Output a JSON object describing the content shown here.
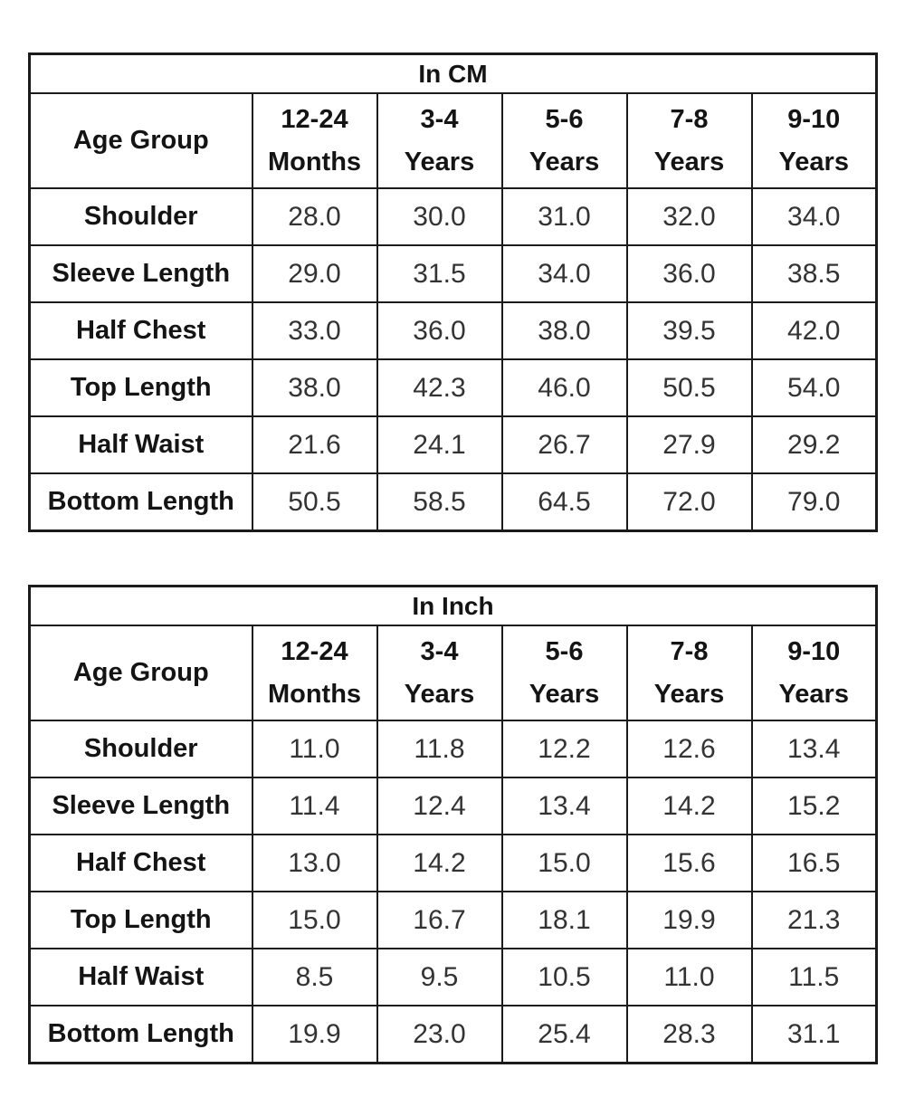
{
  "page": {
    "background": "#ffffff",
    "border_color": "#1b1b1b",
    "label_color": "#141414",
    "value_color": "#333333"
  },
  "tables": [
    {
      "title": "In CM",
      "corner_header": "Age Group",
      "column_headers": [
        "12-24\nMonths",
        "3-4\nYears",
        "5-6\nYears",
        "7-8\nYears",
        "9-10\nYears"
      ],
      "row_headers": [
        "Shoulder",
        "Sleeve Length",
        "Half Chest",
        "Top Length",
        "Half Waist",
        "Bottom Length"
      ],
      "rows": [
        [
          "28.0",
          "30.0",
          "31.0",
          "32.0",
          "34.0"
        ],
        [
          "29.0",
          "31.5",
          "34.0",
          "36.0",
          "38.5"
        ],
        [
          "33.0",
          "36.0",
          "38.0",
          "39.5",
          "42.0"
        ],
        [
          "38.0",
          "42.3",
          "46.0",
          "50.5",
          "54.0"
        ],
        [
          "21.6",
          "24.1",
          "26.7",
          "27.9",
          "29.2"
        ],
        [
          "50.5",
          "58.5",
          "64.5",
          "72.0",
          "79.0"
        ]
      ]
    },
    {
      "title": "In Inch",
      "corner_header": "Age Group",
      "column_headers": [
        "12-24\nMonths",
        "3-4\nYears",
        "5-6\nYears",
        "7-8\nYears",
        "9-10\nYears"
      ],
      "row_headers": [
        "Shoulder",
        "Sleeve Length",
        "Half Chest",
        "Top Length",
        "Half Waist",
        "Bottom Length"
      ],
      "rows": [
        [
          "11.0",
          "11.8",
          "12.2",
          "12.6",
          "13.4"
        ],
        [
          "11.4",
          "12.4",
          "13.4",
          "14.2",
          "15.2"
        ],
        [
          "13.0",
          "14.2",
          "15.0",
          "15.6",
          "16.5"
        ],
        [
          "15.0",
          "16.7",
          "18.1",
          "19.9",
          "21.3"
        ],
        [
          "8.5",
          "9.5",
          "10.5",
          "11.0",
          "11.5"
        ],
        [
          "19.9",
          "23.0",
          "25.4",
          "28.3",
          "31.1"
        ]
      ]
    }
  ],
  "chart_data": [
    {
      "type": "table",
      "title": "In CM",
      "corner_header": "Age Group",
      "categories": [
        "12-24 Months",
        "3-4 Years",
        "5-6 Years",
        "7-8 Years",
        "9-10 Years"
      ],
      "series": [
        {
          "name": "Shoulder",
          "values": [
            28.0,
            30.0,
            31.0,
            32.0,
            34.0
          ]
        },
        {
          "name": "Sleeve Length",
          "values": [
            29.0,
            31.5,
            34.0,
            36.0,
            38.5
          ]
        },
        {
          "name": "Half Chest",
          "values": [
            33.0,
            36.0,
            38.0,
            39.5,
            42.0
          ]
        },
        {
          "name": "Top Length",
          "values": [
            38.0,
            42.3,
            46.0,
            50.5,
            54.0
          ]
        },
        {
          "name": "Half Waist",
          "values": [
            21.6,
            24.1,
            26.7,
            27.9,
            29.2
          ]
        },
        {
          "name": "Bottom Length",
          "values": [
            50.5,
            58.5,
            64.5,
            72.0,
            79.0
          ]
        }
      ]
    },
    {
      "type": "table",
      "title": "In Inch",
      "corner_header": "Age Group",
      "categories": [
        "12-24 Months",
        "3-4 Years",
        "5-6 Years",
        "7-8 Years",
        "9-10 Years"
      ],
      "series": [
        {
          "name": "Shoulder",
          "values": [
            11.0,
            11.8,
            12.2,
            12.6,
            13.4
          ]
        },
        {
          "name": "Sleeve Length",
          "values": [
            11.4,
            12.4,
            13.4,
            14.2,
            15.2
          ]
        },
        {
          "name": "Half Chest",
          "values": [
            13.0,
            14.2,
            15.0,
            15.6,
            16.5
          ]
        },
        {
          "name": "Top Length",
          "values": [
            15.0,
            16.7,
            18.1,
            19.9,
            21.3
          ]
        },
        {
          "name": "Half Waist",
          "values": [
            8.5,
            9.5,
            10.5,
            11.0,
            11.5
          ]
        },
        {
          "name": "Bottom Length",
          "values": [
            19.9,
            23.0,
            25.4,
            28.3,
            31.1
          ]
        }
      ]
    }
  ]
}
